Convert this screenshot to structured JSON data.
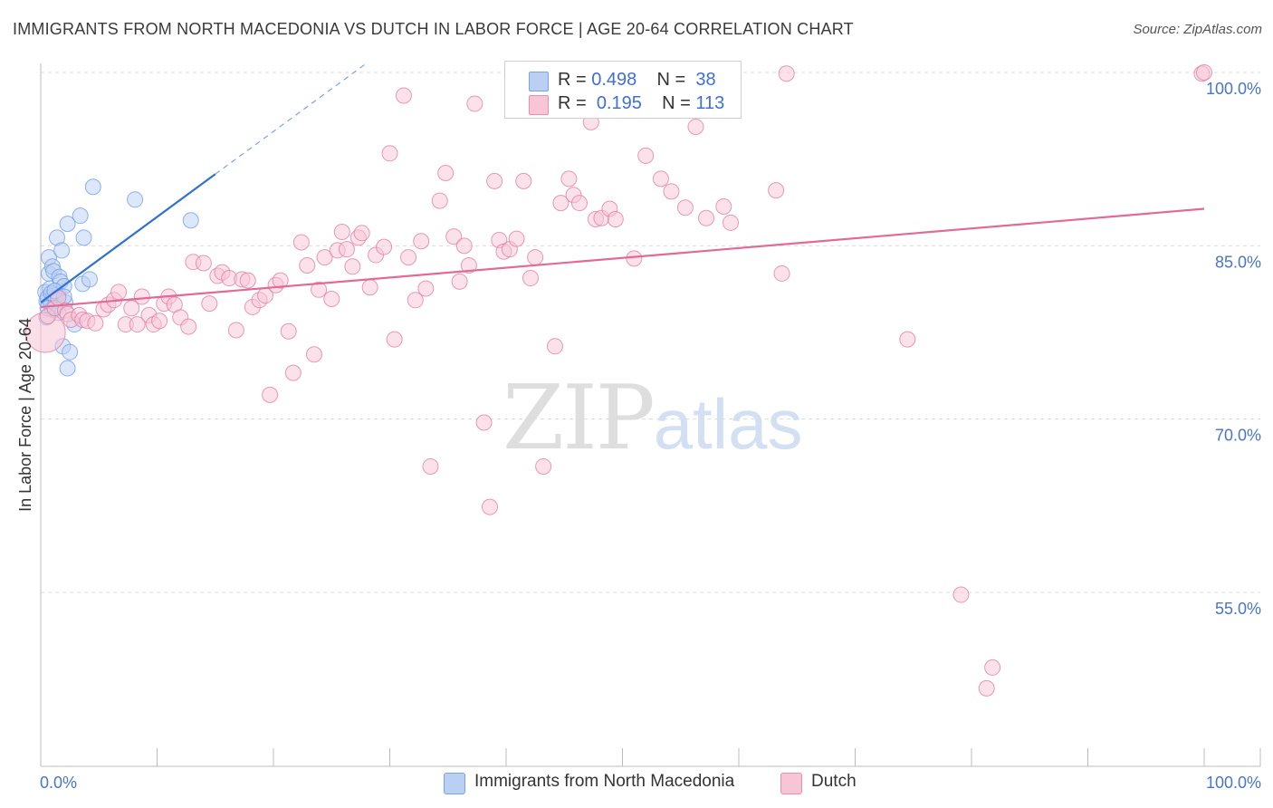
{
  "header": {
    "title": "IMMIGRANTS FROM NORTH MACEDONIA VS DUTCH IN LABOR FORCE | AGE 20-64 CORRELATION CHART",
    "source": "Source: ZipAtlas.com"
  },
  "watermark": {
    "zip": "ZIP",
    "atlas": "atlas"
  },
  "legend": {
    "rows": [
      {
        "r_label": "R = ",
        "r_value": "0.498",
        "n_label": "N = ",
        "n_value": "38",
        "color": "#b9d0f3",
        "stroke": "#7aa3e6"
      },
      {
        "r_label": "R = ",
        "r_value": "0.195",
        "n_label": "N = ",
        "n_value": "113",
        "color": "#f7c5d5",
        "stroke": "#ec8fae"
      }
    ],
    "bottom": [
      {
        "label": "Immigrants from North Macedonia",
        "color": "#b9d0f3",
        "stroke": "#7aa3e6"
      },
      {
        "label": "Dutch",
        "color": "#f7c5d5",
        "stroke": "#ec8fae"
      }
    ]
  },
  "chart_data": {
    "type": "scatter",
    "title": "IMMIGRANTS FROM NORTH MACEDONIA VS DUTCH IN LABOR FORCE | AGE 20-64 CORRELATION CHART",
    "xlabel": "",
    "ylabel": "In Labor Force | Age 20-64",
    "xlim": [
      0,
      100
    ],
    "ylim": [
      40,
      102
    ],
    "x_tick_labels": [
      {
        "value": 0,
        "label": "0.0%"
      },
      {
        "value": 100,
        "label": "100.0%"
      }
    ],
    "y_tick_labels": [
      {
        "value": 100,
        "label": "100.0%"
      },
      {
        "value": 85,
        "label": "85.0%"
      },
      {
        "value": 70,
        "label": "70.0%"
      },
      {
        "value": 55,
        "label": "55.0%"
      }
    ],
    "x_minor_ticks": [
      0,
      10,
      20,
      30,
      40,
      50,
      60,
      70,
      80,
      90,
      100
    ],
    "grid": "horizontal dashed",
    "legend_position": "top-center",
    "series": [
      {
        "name": "Immigrants from North Macedonia",
        "color": "#6e9be4",
        "fill": "#b9d0f3",
        "points": [
          [
            0.4,
            81.0
          ],
          [
            0.5,
            80.2
          ],
          [
            0.5,
            78.8
          ],
          [
            0.6,
            80.5
          ],
          [
            0.7,
            82.6
          ],
          [
            0.7,
            84.0
          ],
          [
            0.8,
            81.3
          ],
          [
            0.9,
            80.0
          ],
          [
            1.0,
            83.2
          ],
          [
            1.1,
            82.8
          ],
          [
            1.1,
            80.7
          ],
          [
            1.2,
            79.8
          ],
          [
            1.3,
            80.4
          ],
          [
            1.4,
            85.7
          ],
          [
            1.5,
            80.8
          ],
          [
            1.6,
            82.3
          ],
          [
            1.7,
            81.9
          ],
          [
            1.8,
            84.6
          ],
          [
            1.9,
            76.3
          ],
          [
            2.0,
            81.5
          ],
          [
            2.1,
            80.1
          ],
          [
            2.3,
            74.4
          ],
          [
            2.3,
            86.9
          ],
          [
            2.5,
            75.8
          ],
          [
            2.9,
            78.2
          ],
          [
            3.4,
            87.6
          ],
          [
            3.6,
            81.7
          ],
          [
            3.7,
            85.7
          ],
          [
            4.2,
            82.1
          ],
          [
            4.5,
            90.1
          ],
          [
            8.1,
            89.0
          ],
          [
            12.9,
            87.2
          ],
          [
            1.0,
            79.5
          ],
          [
            0.9,
            80.9
          ],
          [
            1.2,
            81.1
          ],
          [
            0.6,
            79.6
          ],
          [
            1.5,
            79.2
          ],
          [
            2.0,
            80.6
          ]
        ],
        "trend": {
          "x0": 0,
          "y0": 80.1,
          "x1": 15,
          "y1": 91.2,
          "dashed_to_x": 28,
          "dashed_to_y": 100.8
        }
      },
      {
        "name": "Dutch",
        "color": "#e07aa0",
        "fill": "#f7c5d5",
        "points": [
          [
            0.4,
            77.5
          ],
          [
            0.6,
            78.9
          ],
          [
            1.2,
            79.6
          ],
          [
            1.5,
            80.5
          ],
          [
            2.1,
            79.4
          ],
          [
            2.3,
            79.1
          ],
          [
            2.6,
            78.6
          ],
          [
            3.3,
            79.0
          ],
          [
            3.6,
            78.6
          ],
          [
            4.0,
            78.5
          ],
          [
            4.7,
            78.3
          ],
          [
            5.4,
            79.5
          ],
          [
            5.8,
            79.9
          ],
          [
            6.3,
            80.3
          ],
          [
            6.7,
            81.0
          ],
          [
            7.3,
            78.2
          ],
          [
            7.8,
            79.6
          ],
          [
            8.3,
            78.2
          ],
          [
            8.7,
            80.6
          ],
          [
            9.3,
            79.0
          ],
          [
            9.7,
            78.2
          ],
          [
            10.2,
            78.5
          ],
          [
            10.6,
            80.0
          ],
          [
            11.0,
            80.6
          ],
          [
            11.5,
            79.9
          ],
          [
            12.0,
            78.8
          ],
          [
            12.7,
            78.0
          ],
          [
            13.1,
            83.6
          ],
          [
            14.0,
            83.5
          ],
          [
            14.5,
            80.0
          ],
          [
            15.2,
            82.4
          ],
          [
            15.6,
            82.7
          ],
          [
            16.2,
            82.2
          ],
          [
            16.8,
            77.7
          ],
          [
            17.3,
            82.1
          ],
          [
            17.8,
            82.0
          ],
          [
            18.2,
            79.7
          ],
          [
            18.8,
            80.3
          ],
          [
            19.3,
            80.7
          ],
          [
            19.7,
            72.1
          ],
          [
            20.2,
            81.6
          ],
          [
            20.6,
            82.0
          ],
          [
            21.3,
            77.6
          ],
          [
            21.7,
            74.0
          ],
          [
            22.4,
            85.3
          ],
          [
            22.9,
            83.3
          ],
          [
            23.5,
            75.6
          ],
          [
            23.9,
            81.2
          ],
          [
            24.4,
            84.0
          ],
          [
            25.0,
            80.4
          ],
          [
            25.5,
            84.6
          ],
          [
            25.9,
            86.2
          ],
          [
            26.3,
            84.7
          ],
          [
            26.8,
            83.2
          ],
          [
            27.3,
            85.7
          ],
          [
            27.6,
            86.1
          ],
          [
            28.3,
            81.4
          ],
          [
            28.8,
            84.2
          ],
          [
            29.5,
            84.9
          ],
          [
            30.0,
            93.0
          ],
          [
            30.4,
            76.9
          ],
          [
            31.2,
            98.0
          ],
          [
            31.6,
            84.0
          ],
          [
            32.2,
            80.3
          ],
          [
            32.7,
            85.4
          ],
          [
            33.1,
            81.3
          ],
          [
            33.5,
            65.9
          ],
          [
            34.3,
            88.9
          ],
          [
            34.8,
            91.3
          ],
          [
            35.5,
            85.8
          ],
          [
            36.0,
            81.9
          ],
          [
            36.4,
            85.0
          ],
          [
            36.8,
            83.3
          ],
          [
            37.3,
            97.3
          ],
          [
            38.1,
            69.7
          ],
          [
            38.6,
            62.4
          ],
          [
            39.0,
            90.6
          ],
          [
            39.4,
            85.5
          ],
          [
            39.8,
            84.5
          ],
          [
            40.3,
            84.7
          ],
          [
            40.9,
            85.6
          ],
          [
            41.5,
            90.6
          ],
          [
            42.1,
            82.2
          ],
          [
            42.5,
            84.0
          ],
          [
            43.2,
            65.9
          ],
          [
            44.2,
            76.3
          ],
          [
            44.7,
            88.7
          ],
          [
            45.4,
            90.8
          ],
          [
            45.8,
            89.4
          ],
          [
            46.3,
            88.7
          ],
          [
            47.3,
            95.7
          ],
          [
            47.7,
            87.3
          ],
          [
            48.2,
            87.4
          ],
          [
            48.9,
            88.2
          ],
          [
            49.4,
            87.3
          ],
          [
            51.0,
            83.9
          ],
          [
            52.0,
            92.8
          ],
          [
            53.3,
            90.8
          ],
          [
            54.2,
            89.7
          ],
          [
            55.4,
            88.3
          ],
          [
            56.3,
            95.3
          ],
          [
            57.2,
            87.4
          ],
          [
            58.7,
            88.4
          ],
          [
            59.3,
            87.0
          ],
          [
            63.2,
            89.8
          ],
          [
            63.7,
            82.6
          ],
          [
            64.1,
            99.9
          ],
          [
            74.5,
            76.9
          ],
          [
            79.1,
            54.8
          ],
          [
            81.3,
            46.7
          ],
          [
            81.8,
            48.5
          ],
          [
            99.8,
            99.9
          ],
          [
            100.0,
            100.0
          ]
        ],
        "trend": {
          "x0": 0,
          "y0": 79.7,
          "x1": 100,
          "y1": 88.2
        }
      }
    ]
  }
}
